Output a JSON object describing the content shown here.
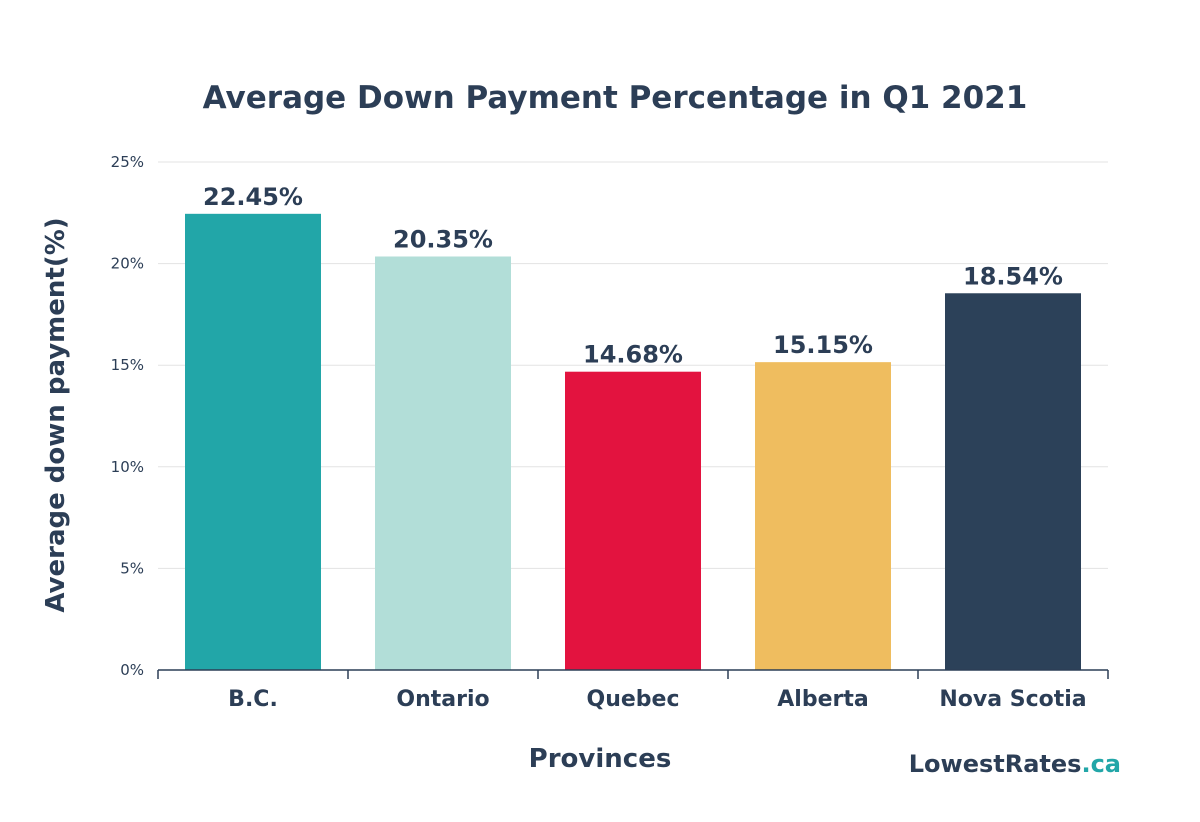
{
  "chart_data": {
    "type": "bar",
    "title": "Average Down Payment Percentage in Q1 2021",
    "xlabel": "Provinces",
    "ylabel": "Average down payment(%)",
    "categories": [
      "B.C.",
      "Ontario",
      "Quebec",
      "Alberta",
      "Nova Scotia"
    ],
    "values": [
      22.45,
      20.35,
      14.68,
      15.15,
      18.54
    ],
    "data_labels": [
      "22.45%",
      "20.35%",
      "14.68%",
      "15.15%",
      "18.54%"
    ],
    "bar_colors": [
      "#22a6a8",
      "#b2ded8",
      "#e3133f",
      "#efbd5f",
      "#2c4159"
    ],
    "ylim": [
      0,
      25
    ],
    "yticks": [
      0,
      5,
      10,
      15,
      20,
      25
    ],
    "ytick_labels": [
      "0%",
      "5%",
      "10%",
      "15%",
      "20%",
      "25%"
    ],
    "grid": true,
    "legend": "none"
  },
  "brand": {
    "name": "LowestRates",
    "suffix": ".ca",
    "name_color": "#2c3e56",
    "suffix_color": "#22a6a8"
  },
  "colors": {
    "text": "#2c3e56",
    "grid": "#e3e3e3"
  }
}
